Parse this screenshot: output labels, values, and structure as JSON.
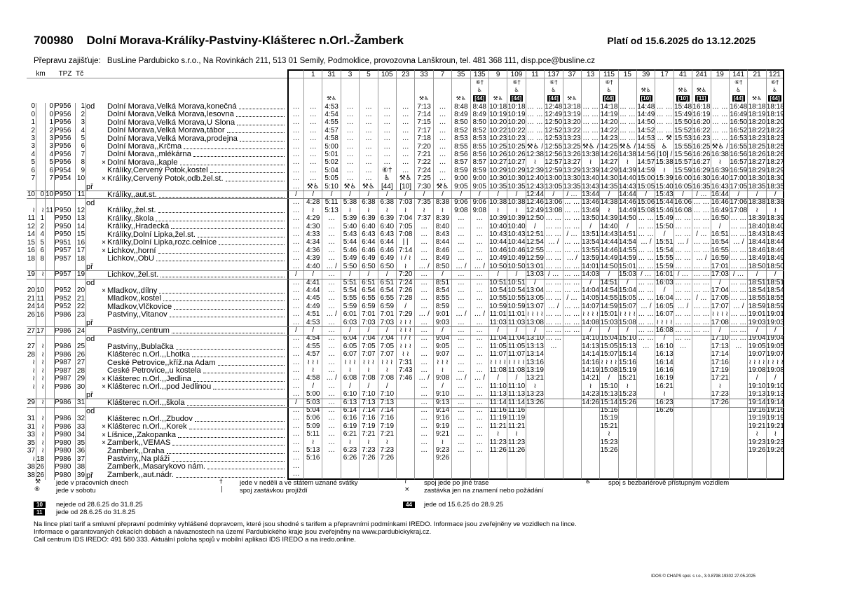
{
  "header": {
    "line_number": "700980",
    "route": "Dolní Morava-Králíky-Pastviny-Klášterec n.Orl.-Žamberk",
    "validity": "Platí od 15.6.2025 do 13.12.2025",
    "operator_label": "Přepravu zajišťuje:",
    "operator": "BusLine Pardubicko s.r.o., Na Rovinkách 211, 513 01 Semily, Podmoklice, provozovna Lanškroun, tel. 481 368 111, disp.pce@busline.cz"
  },
  "labels": {
    "km": "km",
    "tpz": "TPZ",
    "tc": "Tč",
    "dep": "od",
    "arr": "př"
  },
  "stops": [
    {
      "km": [
        "0",
        "",
        "0"
      ],
      "tpz": "P956",
      "tc": "1",
      "x": "",
      "name": "Dolní Morava,Velká Morava,konečná"
    },
    {
      "km": [
        "0",
        "",
        "0"
      ],
      "tpz": "P956",
      "tc": "2",
      "x": "",
      "name": "Dolní Morava,Velká Morava,lesovna"
    },
    {
      "km": [
        "1",
        "",
        "1"
      ],
      "tpz": "P956",
      "tc": "3",
      "x": "",
      "name": "Dolní Morava,Velká Morava,U Slona"
    },
    {
      "km": [
        "2",
        "",
        "2"
      ],
      "tpz": "P956",
      "tc": "4",
      "x": "",
      "name": "Dolní Morava,Velká Morava,tábor"
    },
    {
      "km": [
        "3",
        "",
        "3"
      ],
      "tpz": "P956",
      "tc": "5",
      "x": "",
      "name": "Dolní Morava,Velká Morava,prodejna"
    },
    {
      "km": [
        "3",
        "",
        "3"
      ],
      "tpz": "P956",
      "tc": "6",
      "x": "",
      "name": "Dolní Morava,,Krčma"
    },
    {
      "km": [
        "4",
        "",
        "4"
      ],
      "tpz": "P956",
      "tc": "7",
      "x": "",
      "name": "Dolní Morava,,mlékárna"
    },
    {
      "km": [
        "5",
        "",
        "5"
      ],
      "tpz": "P956",
      "tc": "8",
      "x": "×",
      "name": "Dolní Morava,,kaple"
    },
    {
      "km": [
        "6",
        "",
        "6"
      ],
      "tpz": "P954",
      "tc": "9",
      "x": "",
      "name": "Králíky,Červený Potok,kostel"
    },
    {
      "km": [
        "7",
        "",
        "7"
      ],
      "tpz": "P954",
      "tc": "10",
      "x": "×",
      "name": "Králíky,Červený Potok,odb.žel.st."
    },
    {
      "km": [
        "10",
        "0",
        "10"
      ],
      "tpz": "P950",
      "tc": "11",
      "x": "",
      "name": "Králíky,,aut.st."
    },
    {
      "km": [
        "≀",
        "≀",
        "11"
      ],
      "tpz": "P950",
      "tc": "12",
      "x": "",
      "name": "Králíky,,žel.st."
    },
    {
      "km": [
        "11",
        "1",
        ""
      ],
      "tpz": "P950",
      "tc": "13",
      "x": "",
      "name": "Králíky,,škola"
    },
    {
      "km": [
        "12",
        "2",
        ""
      ],
      "tpz": "P950",
      "tc": "14",
      "x": "",
      "name": "Králíky,,Hradecká"
    },
    {
      "km": [
        "14",
        "4",
        ""
      ],
      "tpz": "P950",
      "tc": "15",
      "x": "",
      "name": "Králíky,Dolní Lipka,žel.st."
    },
    {
      "km": [
        "15",
        "5",
        ""
      ],
      "tpz": "P951",
      "tc": "16",
      "x": "×",
      "name": "Králíky,Dolní Lipka,rozc.celnice"
    },
    {
      "km": [
        "16",
        "6",
        ""
      ],
      "tpz": "P957",
      "tc": "17",
      "x": "×",
      "name": "Lichkov,,horní"
    },
    {
      "km": [
        "18",
        "8",
        ""
      ],
      "tpz": "P957",
      "tc": "18",
      "x": "",
      "name": "Lichkov,,ObÚ"
    },
    {
      "km": [
        "19",
        "≀",
        ""
      ],
      "tpz": "P957",
      "tc": "19",
      "x": "",
      "name": "Lichkov,,žel.st."
    },
    {
      "km": [
        "20",
        "10",
        ""
      ],
      "tpz": "P952",
      "tc": "20",
      "x": "×",
      "name": "Mladkov,,dílny"
    },
    {
      "km": [
        "21",
        "11",
        ""
      ],
      "tpz": "P952",
      "tc": "21",
      "x": "",
      "name": "Mladkov,,kostel"
    },
    {
      "km": [
        "24",
        "14",
        ""
      ],
      "tpz": "P952",
      "tc": "22",
      "x": "",
      "name": "Mladkov,Vlčkovice"
    },
    {
      "km": [
        "26",
        "16",
        ""
      ],
      "tpz": "P986",
      "tc": "23",
      "x": "",
      "name": "Pastviny,,Vitanov"
    },
    {
      "km": [
        "27",
        "17",
        ""
      ],
      "tpz": "P986",
      "tc": "24",
      "x": "",
      "name": "Pastviny,,centrum"
    },
    {
      "km": [
        "27",
        "≀",
        ""
      ],
      "tpz": "P986",
      "tc": "25",
      "x": "",
      "name": "Pastviny,,Bublačka"
    },
    {
      "km": [
        "28",
        "≀",
        ""
      ],
      "tpz": "P986",
      "tc": "26",
      "x": "",
      "name": "Klášterec n.Orl.,,Lhotka"
    },
    {
      "km": [
        "≀",
        "≀",
        ""
      ],
      "tpz": "P987",
      "tc": "27",
      "x": "",
      "name": "České Petrovice,,kříž.na Adam"
    },
    {
      "km": [
        "≀",
        "≀",
        ""
      ],
      "tpz": "P987",
      "tc": "28",
      "x": "",
      "name": "České Petrovice,,u kostela"
    },
    {
      "km": [
        "≀",
        "≀",
        ""
      ],
      "tpz": "P987",
      "tc": "29",
      "x": "×",
      "name": "Klášterec n.Orl.,,Jedlina"
    },
    {
      "km": [
        "≀",
        "≀",
        ""
      ],
      "tpz": "P986",
      "tc": "30",
      "x": "×",
      "name": "Klášterec n.Orl.,,pod Jedlinou"
    },
    {
      "km": [
        "29",
        "≀",
        ""
      ],
      "tpz": "P986",
      "tc": "31",
      "x": "",
      "name": "Klášterec n.Orl.,,škola"
    },
    {
      "km": [
        "31",
        "≀",
        ""
      ],
      "tpz": "P986",
      "tc": "32",
      "x": "",
      "name": "Klášterec n.Orl.,,Zbudov"
    },
    {
      "km": [
        "31",
        "≀",
        ""
      ],
      "tpz": "P986",
      "tc": "33",
      "x": "×",
      "name": "Klášterec n.Orl.,,Korek"
    },
    {
      "km": [
        "33",
        "≀",
        ""
      ],
      "tpz": "P980",
      "tc": "34",
      "x": "×",
      "name": "Líšnice,,Zakopanka"
    },
    {
      "km": [
        "35",
        "≀",
        ""
      ],
      "tpz": "P980",
      "tc": "35",
      "x": "×",
      "name": "Žamberk,,VEMAS"
    },
    {
      "km": [
        "37",
        "≀",
        ""
      ],
      "tpz": "P980",
      "tc": "36",
      "x": "",
      "name": "Žamberk,,Draha"
    },
    {
      "km": [
        "≀",
        "18",
        ""
      ],
      "tpz": "P986",
      "tc": "37",
      "x": "",
      "name": "Pastviny,,Na pláži"
    },
    {
      "km": [
        "38",
        "26",
        ""
      ],
      "tpz": "P980",
      "tc": "38",
      "x": "",
      "name": "Žamberk,,Masarykovo nám."
    },
    {
      "km": [
        "38",
        "26",
        ""
      ],
      "tpz": "P980",
      "tc": "39",
      "x": "",
      "name": "Žamberk,,aut.nádr."
    }
  ],
  "trips": [
    {
      "no": "",
      "notes": [
        "",
        "",
        ""
      ],
      "times": "… … … … … … … … … … … / … … … … … … … … … / … … … … … … / … … … … … … … … / … … … … … … … … …"
    },
    {
      "no": "1",
      "notes": [
        "",
        "",
        ""
      ],
      "times": "… … … … … … … … … … ⚒♿ / 4:28 ≀ 4:29 4:30 4:33 4:34 4:36 4:39 4:40 / 4:41 4:44 4:45 4:49 4:51 4:53 / 4:54 4:55 4:57 ≀ ≀ ≀ ≀ 4:58 / 5:00 5:03 5:04 5:06 5:09 5:11 ≀ 5:13 5:16"
    },
    {
      "no": "31",
      "notes": [
        "",
        "",
        "⚒♿"
      ],
      "times": "4:53 4:54 4:55 4:57 4:58 5:00 5:01 5:02 5:04 5:05 5:10 / 5:11 5:13 … … … … … … … / … … … … … … / … … … … … … … … / … … … … … … … … …"
    },
    {
      "no": "3",
      "notes": [
        "",
        "",
        ""
      ],
      "times": "… … … … … … … … … … ⚒♿ / 5:38 ≀ 5:39 5:40 5:43 5:44 5:46 5:49 5:50 / 5:51 5:54 5:55 5:59 6:01 6:03 / 6:04 6:05 6:07 ≀ ≀ ≀ ≀ 6:08 / 6:10 6:13 6:14 6:16 6:19 6:21 ≀ 6:23 6:26"
    },
    {
      "no": "5",
      "notes": [
        "",
        "",
        ""
      ],
      "times": "… … … … … … … … … … ⚒♿ / 6:38 ≀ 6:39 6:40 6:43 6:44 6:46 6:49 6:50 / 6:51 6:54 6:55 6:59 7:01 7:03 / 7:04 7:05 7:07 ≀ ≀ ≀ ≀ 7:08 / 7:10 7:13 7:14 7:16 7:19 7:21 ≀ 7:23 7:26"
    },
    {
      "no": "105",
      "notes": [
        "",
        "",
        ""
      ],
      "times": "… … … … … … … … ⑥† ♿ [44] / 6:38 ≀ 6:39 6:40 6:43 6:44 6:46 6:49 6:50 / 6:51 6:54 6:55 6:59 7:01 7:03 / 7:04 7:05 7:07 ≀ ≀ ≀ ≀ 7:08 / 7:10 7:13 7:14 7:16 7:19 7:21 ≀ 7:23 7:26"
    },
    {
      "no": "23",
      "notes": [
        "",
        "",
        ""
      ],
      "times": "… … … … … … … … … ⚒♿ [10] / 7:03 ≀ 7:04 7:05 7:08 | | 7:14 ≀ / ≀ ≀ 7:20 7:24 7:26 7:28 / 7:29 ≀ ≀ ≀ ≀ ≀ ≀ ≀ / ≀ ≀ ≀ ≀ ≀ ≀ 7:31 7:43 7:46"
    },
    {
      "no": "33",
      "notes": [
        "",
        "",
        "⚒♿"
      ],
      "times": "7:13 7:14 7:15 7:17 7:18 7:20 7:21 7:22 7:24 7:25 7:30 / 7:35 ≀ 7:37 … … … … … … / … … … … … … / … … … … … … … … / … … … … … … … … …"
    },
    {
      "no": "7",
      "notes": [
        "",
        "",
        ""
      ],
      "times": "… … … … … … … … … … ⚒♿ / 8:38 ≀ 8:39 8:40 8:43 8:44 8:46 8:49 8:50 / 8:51 8:54 8:55 8:59 9:01 9:03 / 9:04 9:05 9:07 ≀ ≀ ≀ ≀ 9:08 / 9:10 9:13 9:14 9:16 9:19 9:21 ≀ 9:23 9:26"
    },
    {
      "no": "35",
      "notes": [
        "",
        "",
        "⚒♿"
      ],
      "times": "8:48 8:49 8:50 8:52 8:53 8:55 8:56 8:57 8:59 9:00 9:05 / 9:06 9:08 … … … … … … … / … … … … … … / … … … … … … … … / … … … … … … … … …"
    },
    {
      "no": "135",
      "notes": [
        "⑥†",
        "♿",
        "[44]"
      ],
      "times": "8:48 8:49 8:50 8:52 8:53 8:55 8:56 8:57 8:59 9:00 9:05 / 9:06 9:08 … … … … … … … / … … … … … … / … … … … … … … … / … … … … … … … … …"
    },
    {
      "no": "9",
      "notes": [
        "",
        "",
        "⚒♿"
      ],
      "times": "10:18 10:19 10:20 10:22 10:23 10:25 10:26 10:27 10:29 10:30 10:35 / 10:38 ≀ 10:39 10:40 10:43 10:44 10:46 10:49 10:50 / 10:51 10:54 10:55 10:59 11:01 11:03 / 11:04 11:05 11:07 ≀ ≀ ≀ ≀ 11:08 / 11:10 11:13 11:14 11:16 11:19 11:21 ≀ 11:23 11:26"
    },
    {
      "no": "109",
      "notes": [
        "⑥†",
        "♿",
        "[44]"
      ],
      "times": "10:18 10:19 10:20 10:22 10:23 10:25 10:26 10:27 10:29 10:30 10:35 / 10:38 ≀ 10:39 10:40 10:43 10:44 10:46 10:49 10:50 / 10:51 10:54 10:55 10:59 11:01 11:03 / 11:04 11:05 11:07 ≀ ≀ ≀ ≀ 11:08 / 11:10 11:13 11:14 11:16 11:19 11:21 ≀ 11:23 11:26"
    },
    {
      "no": "11",
      "notes": [
        "",
        "",
        ""
      ],
      "times": "… … … … … … … … … … ⚒♿ / 12:38 ≀ 12:39 12:40 12:43 12:44 12:46 12:49 12:50 / 12:51 12:54 12:55 12:59 13:01 13:03 / 13:04 13:05 13:07 ≀ ≀ ≀ ≀ 13:08 / 13:10 13:13 13:14 13:16 13:19 13:21 ≀ 13:23 13:26"
    },
    {
      "no": "137",
      "notes": [
        "⑥†",
        "♿",
        "[44]"
      ],
      "times": "12:48 12:49 12:50 12:52 12:53 12:55 12:56 12:57 12:59 13:00 13:05 / 13:06 13:08 … … … … … … … / … … … … … … / … … … … … … … … / … … … … … … … … …"
    },
    {
      "no": "37",
      "notes": [
        "",
        "",
        "⚒♿"
      ],
      "times": "13:18 13:19 13:20 13:22 13:23 13:25 13:26 13:27 13:29 13:30 13:35 / … … … … … … … … … / … … … … … … / … … … … … … … … / … … … … … … … … …"
    },
    {
      "no": "13",
      "notes": [
        "",
        "",
        ""
      ],
      "times": "… … … … … … … … … … ⚒♿ / 13:38 ≀ 13:39 13:40 13:43 13:44 13:46 13:49 13:50 / 13:51 13:54 13:55 13:59 14:01 14:03 / 14:04 14:05 14:07 ≀ ≀ ≀ ≀ 14:08 / 14:10 14:13 14:14 14:16 14:19 14:21 ≀ 14:23 14:26"
    },
    {
      "no": "115",
      "notes": [
        "⑥†",
        "♿",
        "[44]"
      ],
      "times": "14:18 14:19 14:20 14:22 14:23 14:25 14:26 14:27 14:29 14:30 14:35 / 14:38 ≀ 14:39 14:40 14:43 14:44 14:46 14:49 14:50 / 14:51 14:54 14:55 14:59 15:01 15:03 / 15:04 15:05 15:07 ≀ ≀ ≀ ≀ 15:08 / 15:10 15:13 15:14 15:16 15:19 15:21 ≀ 15:23 15:26"
    },
    {
      "no": "15",
      "notes": [
        "",
        "",
        ""
      ],
      "times": "… … … … … … … … … … ⚒♿ / 14:38 ≀ 14:39 14:40 14:43 14:44 14:46 14:49 14:50 / 14:51 14:54 14:55 14:59 15:01 15:03 / 15:04 15:05 15:07 ≀ ≀ ≀ ≀ 15:08 / 15:10 15:13 15:14 15:16 15:19 15:21 ≀ 15:23 15:26"
    },
    {
      "no": "39",
      "notes": [
        "",
        "⚒♿",
        "[10]"
      ],
      "times": "14:48 14:49 14:50 14:52 14:53 14:55 14:56 14:57 14:59 15:00 15:05 / 15:06 15:08 … … … … … … … / … … … … … … / … … … … … … … … / … … … … … … … … …"
    },
    {
      "no": "17",
      "notes": [
        "",
        "",
        ""
      ],
      "times": "… … … … … … … … … ⚒♿ [10] / 15:38 ≀ 15:39 15:40 15:43 15:44 15:46 15:49 15:50 / 15:51 15:54 15:55 15:59 16:01 16:03 / 16:04 16:05 16:07 ≀ ≀ ≀ ≀ 16:08 / 16:10 16:13 16:14 16:16 16:19 16:21 ≀ 16:23 16:26"
    },
    {
      "no": "41",
      "notes": [
        "",
        "⚒♿",
        "[10]"
      ],
      "times": "15:48 15:49 15:50 15:52 15:53 15:55 15:56 15:57 15:59 16:00 16:05 / 16:06 16:08 … … … … … … … / … … … … … … / … … … … … … … … / … … … … … … … … …"
    },
    {
      "no": "241",
      "notes": [
        "",
        "⚒♿",
        "[11]"
      ],
      "times": "16:18 16:19 16:20 16:22 16:23 16:25 16:26 16:27 16:29 16:30 16:35 / … … … … … … … … … / … … … … … … / … … … … … … … … / … … … … … … … … …"
    },
    {
      "no": "19",
      "notes": [
        "",
        "",
        ""
      ],
      "times": "… … … … … … … … … … ⚒♿ / 16:38 ≀ 16:39 16:40 16:43 16:44 16:46 16:49 16:50 / 16:51 16:54 16:55 16:59 17:01 17:03 / 17:04 17:05 17:07 ≀ ≀ ≀ ≀ 17:08 / 17:10 17:13 17:14 17:16 17:19 17:21 ≀ 17:23 17:26"
    },
    {
      "no": "141",
      "notes": [
        "⑥†",
        "♿",
        "[44]"
      ],
      "times": "16:48 16:49 16:50 16:52 16:53 16:55 16:56 16:57 16:59 17:00 17:05 / 17:06 17:08 … … … … … … … / … … … … … … / … … … … … … … … / … … … … … … … … …"
    },
    {
      "no": "21",
      "notes": [
        "",
        "",
        "⚒♿"
      ],
      "times": "18:18 18:19 18:20 18:22 18:23 18:25 18:26 18:27 18:29 18:30 18:35 / 18:38 ≀ 18:39 18:40 18:43 18:44 18:46 18:49 18:50 / 18:51 18:54 18:55 18:59 19:01 19:03 / 19:04 19:05 19:07 ≀ ≀ ≀ ≀ 19:08 / 19:10 19:13 19:14 19:16 19:19 19:21 ≀ 19:23 19:26"
    },
    {
      "no": "121",
      "notes": [
        "⑥†",
        "♿",
        "[44]"
      ],
      "times": "18:18 18:19 18:20 18:22 18:23 18:25 18:26 18:27 18:29 18:30 18:35 / 18:38 ≀ 18:39 18:40 18:43 18:44 18:46 18:49 18:50 / 18:51 18:54 18:55 18:59 19:01 19:03 / 19:04 19:05 19:07 ≀ ≀ ≀ ≀ 19:08 / 19:10 19:13 19:14 19:16 19:19 19:21 ≀ 19:23 19:26"
    }
  ],
  "legend": {
    "workdays": {
      "symbol": "⚒",
      "text": "jede v pracovních dnech"
    },
    "saturday": {
      "symbol": "⑥",
      "text": "jede v sobotu"
    },
    "sunday": {
      "symbol": "†",
      "text": "jede v neděli a ve státem uznané svátky"
    },
    "passes": {
      "symbol": "|",
      "text": "spoj zastávkou projíždí"
    },
    "other_route": {
      "symbol": "≀",
      "text": "spoj jede po jiné trase"
    },
    "request_stop": {
      "symbol": "×",
      "text": "zastávka jen na znamení nebo požádání"
    },
    "wheelchair": {
      "symbol": "♿",
      "text": "spoj s bezbariérově přístupným vozidlem"
    },
    "badge10": {
      "code": "10",
      "text": "nejede od 28.6.25 do 31.8.25"
    },
    "badge11": {
      "code": "11",
      "text": "jede od 28.6.25 do 31.8.25"
    },
    "badge44": {
      "code": "44",
      "text": "jede od 15.6.25 do 28.9.25"
    }
  },
  "notes": [
    "Na lince platí tarif a smluvní přepravní podmínky vyhlášené dopravcem, které jsou shodné s tarifem a přepravními podmínkami IREDO. Informace jsou zveřejněny ve vozidlech na lince.",
    "Informace o garantovaných čekacích dobách a návaznostech na území Pardubického kraje jsou zveřejněny na www.pardubickykraj.cz.",
    "Call centrum IDS IREDO: 491 580 333. Aktuální poloha spojů v mobilní aplikaci IDS IREDO a na iredo.online."
  ],
  "footer": "IDOS © CHAPS spol. s r.o., 3.0.8798.19302 27.05.2025"
}
